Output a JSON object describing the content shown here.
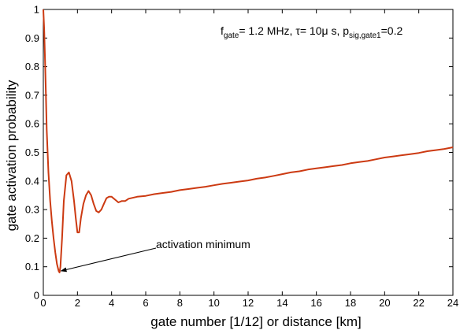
{
  "chart_data": {
    "type": "line",
    "xlabel": "gate number [1/12] or distance [km]",
    "ylabel": "gate activation probability",
    "xlim": [
      0,
      24
    ],
    "ylim": [
      0,
      1
    ],
    "xticks": [
      "0",
      "2",
      "4",
      "6",
      "8",
      "10",
      "12",
      "14",
      "16",
      "18",
      "20",
      "22",
      "24"
    ],
    "yticks": [
      "0",
      "0.1",
      "0.2",
      "0.3",
      "0.4",
      "0.5",
      "0.6",
      "0.7",
      "0.8",
      "0.9",
      "1"
    ],
    "grid": false,
    "series_color": "#cc3a12",
    "params": {
      "f_main": "f",
      "f_sub": "gate",
      "f_value": "= 1.2 MHz, ",
      "tau_text": "τ= 10μ s, p",
      "p_sub": "sig,gate1",
      "p_value": "=0.2"
    },
    "annotation": {
      "text": "activation minimum",
      "x": 0.9,
      "y": 0.08
    },
    "series": [
      {
        "x": [
          0,
          0.05,
          0.1,
          0.15,
          0.2,
          0.3,
          0.4,
          0.5,
          0.6,
          0.7,
          0.8,
          0.9,
          0.95,
          1.0,
          1.1,
          1.2,
          1.35,
          1.5,
          1.65,
          1.8,
          1.9,
          2.0,
          2.1,
          2.2,
          2.35,
          2.5,
          2.65,
          2.8,
          2.95,
          3.1,
          3.25,
          3.4,
          3.55,
          3.7,
          3.85,
          4.0,
          4.2,
          4.4,
          4.6,
          4.8,
          5.0,
          5.5,
          6.0,
          6.5,
          7.0,
          7.5,
          8.0,
          8.5,
          9.0,
          9.5,
          10.0,
          10.5,
          11.0,
          11.5,
          12.0,
          12.5,
          13.0,
          13.5,
          14.0,
          14.5,
          15.0,
          15.5,
          16.0,
          16.5,
          17.0,
          17.5,
          18.0,
          18.5,
          19.0,
          19.5,
          20.0,
          20.5,
          21.0,
          21.5,
          22.0,
          22.5,
          23.0,
          23.5,
          24.0
        ],
        "y": [
          1.0,
          0.93,
          0.82,
          0.7,
          0.58,
          0.43,
          0.33,
          0.26,
          0.2,
          0.15,
          0.11,
          0.085,
          0.08,
          0.1,
          0.2,
          0.33,
          0.42,
          0.43,
          0.4,
          0.33,
          0.27,
          0.22,
          0.22,
          0.27,
          0.32,
          0.35,
          0.365,
          0.35,
          0.32,
          0.295,
          0.29,
          0.3,
          0.32,
          0.34,
          0.345,
          0.345,
          0.335,
          0.325,
          0.33,
          0.33,
          0.338,
          0.345,
          0.348,
          0.354,
          0.358,
          0.362,
          0.368,
          0.372,
          0.376,
          0.38,
          0.385,
          0.39,
          0.394,
          0.398,
          0.402,
          0.408,
          0.412,
          0.418,
          0.424,
          0.43,
          0.434,
          0.44,
          0.444,
          0.448,
          0.452,
          0.456,
          0.462,
          0.466,
          0.47,
          0.476,
          0.482,
          0.486,
          0.49,
          0.494,
          0.498,
          0.504,
          0.508,
          0.512,
          0.518
        ]
      }
    ]
  }
}
